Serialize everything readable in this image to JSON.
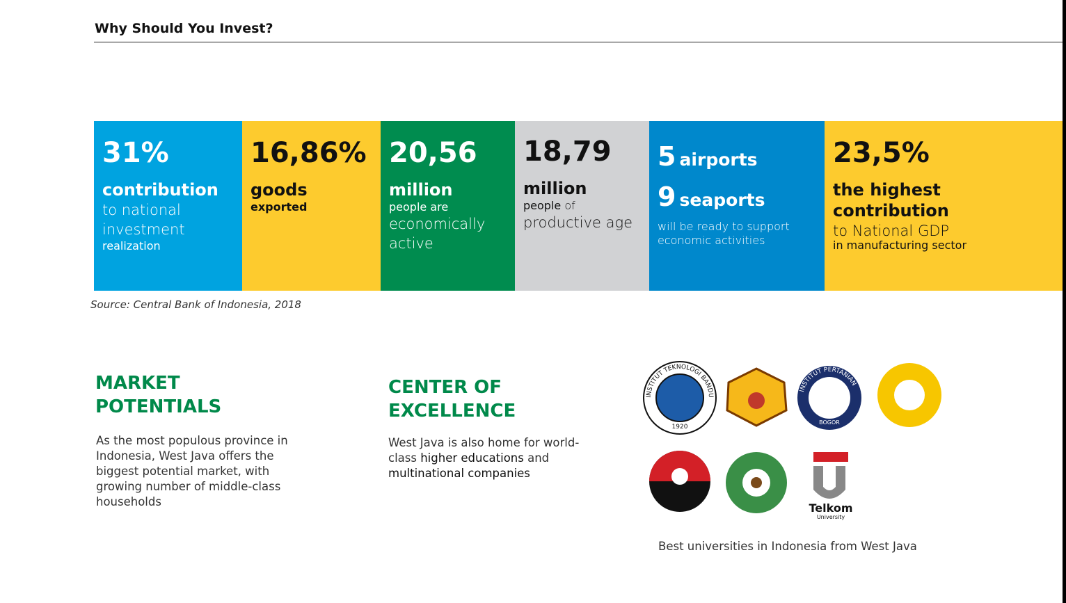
{
  "header": {
    "title": "Why Should You Invest?"
  },
  "stats": [
    {
      "big": "31%",
      "bold": "contribution",
      "light": "to national investment",
      "small": "realization"
    },
    {
      "big": "16,86%",
      "bold": "goods",
      "small": "exported"
    },
    {
      "big": "20,56",
      "bold": "million",
      "small": "people are",
      "light": "economically active"
    },
    {
      "big": "18,79",
      "bold": "million",
      "small": "people",
      "small2": "of",
      "light": "productive age"
    },
    {
      "num1": "5",
      "word1": "airports",
      "num2": "9",
      "word2": "seaports",
      "small": "will be ready to support economic activities"
    },
    {
      "big": "23,5%",
      "bold": "the highest contribution",
      "light": "to National GDP",
      "small": "in manufacturing sector"
    }
  ],
  "source": "Source: Central Bank of Indonesia, 2018",
  "market": {
    "title": "MARKET POTENTIALS",
    "text": "As the most populous province in Indonesia, West Java offers the biggest potential market, with growing number of middle-class households"
  },
  "excellence": {
    "title": "CENTER OF EXCELLENCE",
    "text": [
      "West Java is also home for world-class ",
      "higher educations",
      " and ",
      "multinational companies"
    ]
  },
  "logos": {
    "itb": [
      "INSTITUT TEKNOLOGI BANDUNG",
      "1920"
    ],
    "ipb": [
      "INSTITUT PERTANIAN",
      "BOGOR"
    ],
    "telkom": [
      "Telkom",
      "University"
    ]
  },
  "caption": "Best universities in Indonesia from West Java"
}
